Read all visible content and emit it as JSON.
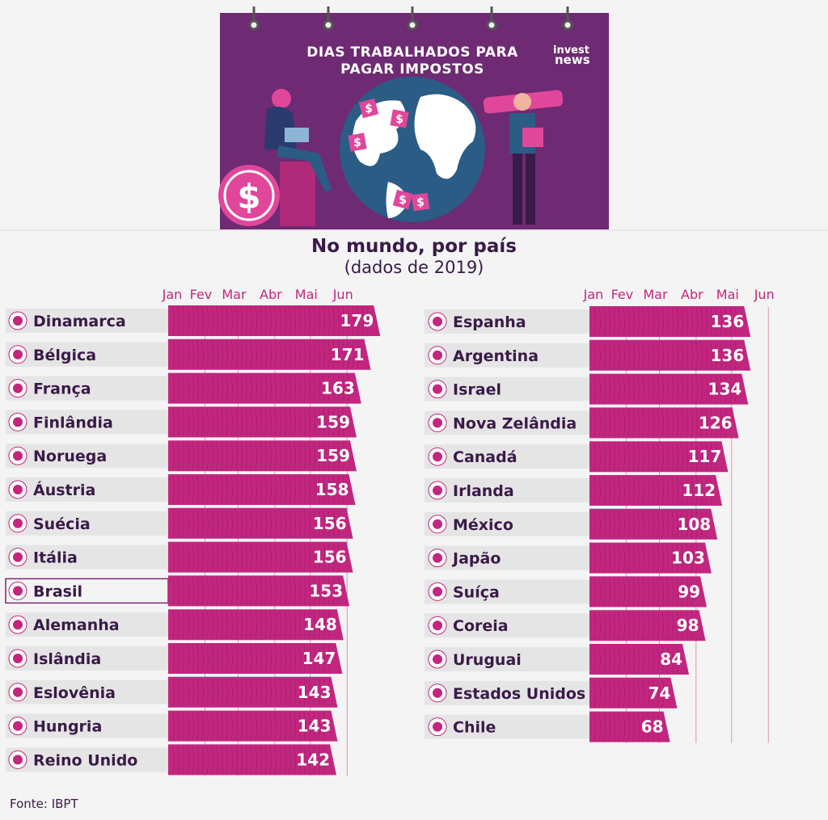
{
  "header": {
    "title_line1": "DIAS TRABALHADOS PARA",
    "title_line2": "PAGAR IMPOSTOS",
    "brand_line1": "invest",
    "brand_line2": "news",
    "dollar_symbol": "$",
    "tag_symbol": "$"
  },
  "colors": {
    "bar": "#c2267f",
    "header_bg": "#6e2a73",
    "text": "#3a1a48",
    "month": "#c2267f",
    "label_bg": "#e5e5e5"
  },
  "footer": {
    "source": "Fonte: IBPT"
  },
  "chart_data": {
    "type": "bar",
    "orientation": "horizontal",
    "title": "No mundo, por país",
    "subtitle": "(dados de 2019)",
    "x_ticks": [
      "Jan",
      "Fev",
      "Mar",
      "Abr",
      "Mai",
      "Jun"
    ],
    "xlim": [
      0,
      181
    ],
    "highlight": "Brasil",
    "panels": [
      {
        "categories": [
          "Dinamarca",
          "Bélgica",
          "França",
          "Finlândia",
          "Noruega",
          "Áustria",
          "Suécia",
          "Itália",
          "Brasil",
          "Alemanha",
          "Islândia",
          "Eslovênia",
          "Hungria",
          "Reino Unido"
        ],
        "values": [
          179,
          171,
          163,
          159,
          159,
          158,
          156,
          156,
          153,
          148,
          147,
          143,
          143,
          142
        ]
      },
      {
        "categories": [
          "Espanha",
          "Argentina",
          "Israel",
          "Nova Zelândia",
          "Canadá",
          "Irlanda",
          "México",
          "Japão",
          "Suíça",
          "Coreia",
          "Uruguai",
          "Estados Unidos",
          "Chile"
        ],
        "values": [
          136,
          136,
          134,
          126,
          117,
          112,
          108,
          103,
          99,
          98,
          84,
          74,
          68
        ]
      }
    ]
  }
}
